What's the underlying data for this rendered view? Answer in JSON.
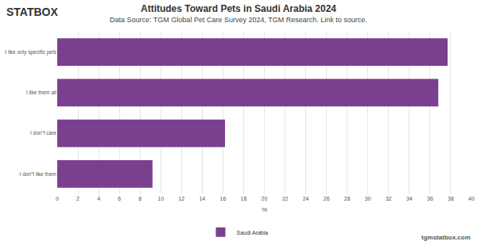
{
  "chart_data": {
    "type": "bar",
    "orientation": "horizontal",
    "title": "Attitudes Toward Pets in Saudi Arabia 2024",
    "subtitle": "Data Source: TGM Global Pet Care Survey 2024, TGM Research. Link to source.",
    "x_label": "%",
    "categories": [
      "I like only specific pets",
      "I like them all",
      "I don\"t care",
      "I don\"t like them"
    ],
    "series": [
      {
        "name": "Saudi Arabia",
        "color": "#7b3f8f",
        "values": [
          37.7,
          36.8,
          16.2,
          9.2
        ]
      }
    ],
    "xlim": [
      0,
      40
    ],
    "xticks": [
      0,
      2,
      4,
      6,
      8,
      10,
      12,
      14,
      16,
      18,
      20,
      22,
      24,
      26,
      28,
      30,
      32,
      34,
      36,
      38,
      40
    ],
    "grid": true,
    "legend": "bottom",
    "annotations": [
      {
        "text": "STATBOX"
      },
      {
        "text": "tgmstatbox.com"
      }
    ]
  }
}
